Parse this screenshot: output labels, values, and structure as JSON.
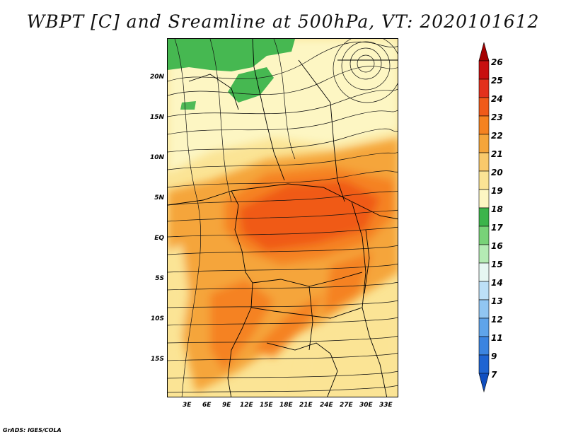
{
  "title": "WBPT [C] and Sreamline at 500hPa, VT: 2020101612",
  "credit": "GrADS: IGES/COLA",
  "latitude_labels": [
    "20N",
    "15N",
    "10N",
    "5N",
    "EQ",
    "5S",
    "10S",
    "15S"
  ],
  "longitude_labels": [
    "3E",
    "6E",
    "9E",
    "12E",
    "15E",
    "18E",
    "21E",
    "24E",
    "27E",
    "30E",
    "33E"
  ],
  "colorbar": {
    "levels": [
      "26",
      "25",
      "24",
      "23",
      "22",
      "21",
      "20",
      "19",
      "18",
      "17",
      "16",
      "15",
      "14",
      "13",
      "12",
      "11",
      "9",
      "7"
    ],
    "colors": [
      "#a50000",
      "#c80f0f",
      "#e3301c",
      "#f05a19",
      "#f58220",
      "#f5a53a",
      "#f9c96b",
      "#fbe495",
      "#fdf6c3",
      "#3cb44b",
      "#78d278",
      "#b4ebb4",
      "#e6f7f2",
      "#bde0f7",
      "#91c6f2",
      "#5fa4ea",
      "#3b84e0",
      "#1e64d2",
      "#0f4ec0"
    ]
  },
  "map_colors": {
    "background": "#fbe495",
    "light_yellow": "#fdf6c3",
    "orange_light": "#f5a53a",
    "orange": "#f58220",
    "orange_dark": "#f05a19",
    "green": "#3cb44b"
  }
}
